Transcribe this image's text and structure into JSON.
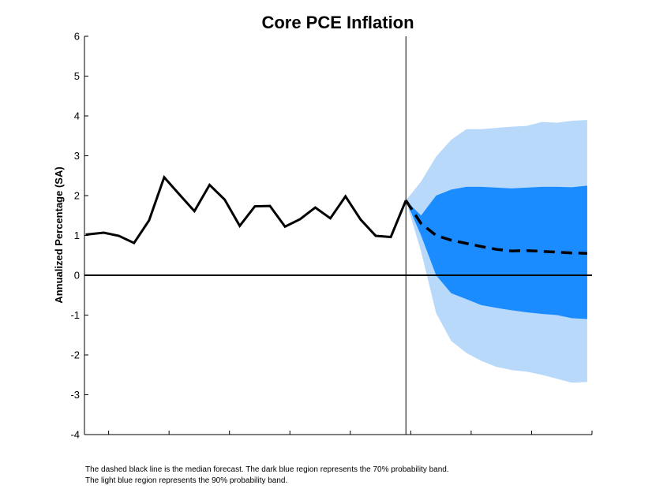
{
  "chart_data": {
    "type": "line",
    "title": "Core PCE Inflation",
    "ylabel": "Annualized Percentage (SA)",
    "xlim": [
      2009.6,
      2018.0
    ],
    "ylim": [
      -4,
      6
    ],
    "x_ticks": [
      2010,
      2011,
      2012,
      2013,
      2014,
      2015,
      2016,
      2017,
      2018
    ],
    "y_ticks": [
      6,
      5,
      4,
      3,
      2,
      1,
      0,
      -1,
      -2,
      -3,
      -4
    ],
    "forecast_start": 2014.92,
    "colors": {
      "band90": "#b8d9fa",
      "band70": "#1a8cff",
      "history": "#000000",
      "median": "#000000"
    },
    "history": {
      "x": [
        2009.62,
        2009.92,
        2010.17,
        2010.42,
        2010.67,
        2010.92,
        2011.17,
        2011.42,
        2011.67,
        2011.92,
        2012.17,
        2012.42,
        2012.67,
        2012.92,
        2013.17,
        2013.42,
        2013.67,
        2013.92,
        2014.17,
        2014.42,
        2014.67,
        2014.92
      ],
      "y": [
        1.02,
        1.07,
        0.99,
        0.81,
        1.38,
        2.46,
        2.03,
        1.61,
        2.27,
        1.9,
        1.24,
        1.73,
        1.74,
        1.22,
        1.41,
        1.7,
        1.43,
        1.98,
        1.4,
        0.99,
        0.96,
        1.88
      ]
    },
    "median_forecast": {
      "x": [
        2014.92,
        2015.17,
        2015.42,
        2015.67,
        2015.92,
        2016.17,
        2016.42,
        2016.67,
        2016.92,
        2017.17,
        2017.42,
        2017.67,
        2017.92
      ],
      "y": [
        1.88,
        1.3,
        1.0,
        0.88,
        0.8,
        0.72,
        0.65,
        0.61,
        0.62,
        0.6,
        0.58,
        0.56,
        0.55
      ]
    },
    "band70": {
      "x": [
        2014.92,
        2015.17,
        2015.42,
        2015.67,
        2015.92,
        2016.17,
        2016.42,
        2016.67,
        2016.92,
        2017.17,
        2017.42,
        2017.67,
        2017.92
      ],
      "lower": [
        1.88,
        1.0,
        0.0,
        -0.45,
        -0.6,
        -0.75,
        -0.82,
        -0.88,
        -0.93,
        -0.97,
        -1.0,
        -1.08,
        -1.1
      ],
      "upper": [
        1.88,
        1.5,
        2.0,
        2.15,
        2.22,
        2.22,
        2.2,
        2.18,
        2.2,
        2.22,
        2.22,
        2.21,
        2.25
      ]
    },
    "band90": {
      "x": [
        2014.92,
        2015.17,
        2015.42,
        2015.67,
        2015.92,
        2016.17,
        2016.42,
        2016.67,
        2016.92,
        2017.17,
        2017.42,
        2017.67,
        2017.92
      ],
      "lower": [
        1.88,
        0.6,
        -0.95,
        -1.65,
        -1.95,
        -2.15,
        -2.3,
        -2.38,
        -2.42,
        -2.5,
        -2.6,
        -2.7,
        -2.68
      ],
      "upper": [
        1.88,
        2.35,
        2.98,
        3.4,
        3.67,
        3.67,
        3.7,
        3.73,
        3.75,
        3.85,
        3.83,
        3.88,
        3.9
      ]
    }
  },
  "caption": {
    "line1": "The dashed black line is the median forecast. The dark blue region represents the 70% probability band.",
    "line2": "The light blue region represents the 90% probability band."
  }
}
